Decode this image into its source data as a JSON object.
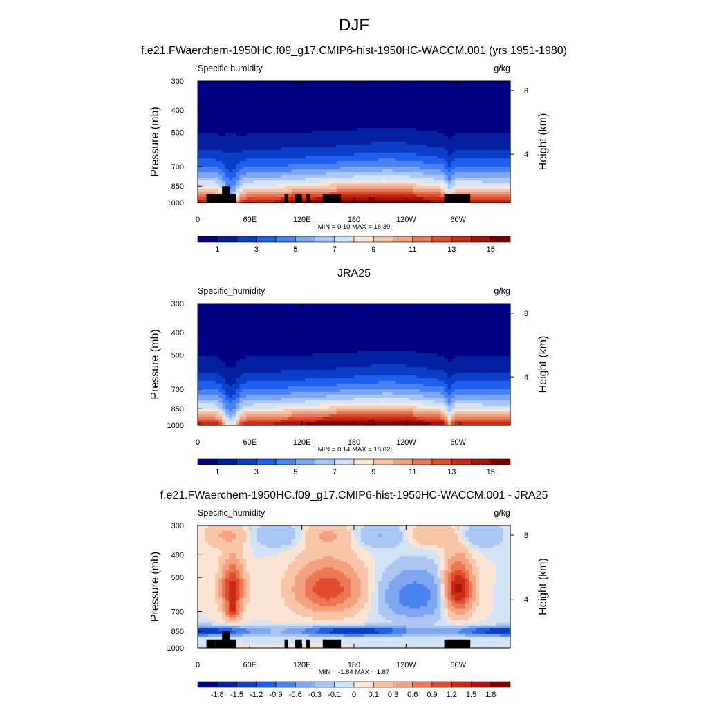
{
  "main_title": "DJF",
  "chart_data": [
    {
      "type": "heatmap",
      "title": "f.e21.FWaerchem-1950HC.f09_g17.CMIP6-hist-1950HC-WACCM.001 (yrs 1951-1980)",
      "left_label": "Specific humidity",
      "units_label": "g/kg",
      "ylabel": "Pressure (mb)",
      "ylabel_right": "Height (km)",
      "xlabel": "",
      "x_ticks": [
        "0",
        "60E",
        "120E",
        "180",
        "120W",
        "60W"
      ],
      "y_ticks": [
        "300",
        "400",
        "500",
        "700",
        "850",
        "1000"
      ],
      "y_ticks_right": [
        "8",
        "4"
      ],
      "xlim": [
        0,
        360
      ],
      "ylim": [
        1000,
        300
      ],
      "min_max_text": "MIN =   0.10  MAX =   18.39",
      "levels": [
        0,
        1,
        2,
        3,
        4,
        5,
        6,
        7,
        8,
        9,
        10,
        11,
        12,
        13,
        14,
        15,
        16
      ],
      "colorbar_labels": [
        "1",
        "3",
        "5",
        "7",
        "9",
        "11",
        "13",
        "15"
      ],
      "topography_mask": true
    },
    {
      "type": "heatmap",
      "title": "JRA25",
      "left_label": "Specific_humidity",
      "units_label": "g/kg",
      "ylabel": "Pressure (mb)",
      "ylabel_right": "Height (km)",
      "xlabel": "",
      "x_ticks": [
        "0",
        "60E",
        "120E",
        "180",
        "120W",
        "60W"
      ],
      "y_ticks": [
        "300",
        "400",
        "500",
        "700",
        "850",
        "1000"
      ],
      "y_ticks_right": [
        "8",
        "4"
      ],
      "xlim": [
        0,
        360
      ],
      "ylim": [
        1000,
        300
      ],
      "min_max_text": "MIN =   0.14  MAX =   18.02",
      "levels": [
        0,
        1,
        2,
        3,
        4,
        5,
        6,
        7,
        8,
        9,
        10,
        11,
        12,
        13,
        14,
        15,
        16
      ],
      "colorbar_labels": [
        "1",
        "3",
        "5",
        "7",
        "9",
        "11",
        "13",
        "15"
      ],
      "topography_mask": false
    },
    {
      "type": "heatmap",
      "title": "f.e21.FWaerchem-1950HC.f09_g17.CMIP6-hist-1950HC-WACCM.001 - JRA25",
      "left_label": "Specific_humidity",
      "units_label": "g/kg",
      "ylabel": "Pressure (mb)",
      "ylabel_right": "Height (km)",
      "xlabel": "",
      "x_ticks": [
        "0",
        "60E",
        "120E",
        "180",
        "120W",
        "60W"
      ],
      "y_ticks": [
        "300",
        "400",
        "500",
        "700",
        "850",
        "1000"
      ],
      "y_ticks_right": [
        "8",
        "4"
      ],
      "xlim": [
        0,
        360
      ],
      "ylim": [
        1000,
        300
      ],
      "min_max_text": "MIN =  -1.84  MAX =   1.87",
      "levels": [
        -2.1,
        -1.8,
        -1.5,
        -1.2,
        -0.9,
        -0.6,
        -0.3,
        -0.1,
        0,
        0.1,
        0.3,
        0.6,
        0.9,
        1.2,
        1.5,
        1.8,
        2.1
      ],
      "colorbar_labels": [
        "-1.8",
        "-1.5",
        "-1.2",
        "-0.9",
        "-0.6",
        "-0.3",
        "-0.1",
        "0",
        "0.1",
        "0.3",
        "0.6",
        "0.9",
        "1.2",
        "1.5",
        "1.8"
      ],
      "topography_mask": true
    }
  ],
  "colormap": [
    "#000080",
    "#0320a0",
    "#0a3fc8",
    "#1f5ff0",
    "#4a82f0",
    "#7fa6f0",
    "#abc6f2",
    "#d3e3f6",
    "#fbe4d4",
    "#f8c5a8",
    "#f3a17f",
    "#ec7656",
    "#e14b2e",
    "#c92a14",
    "#a5150a",
    "#7f0000"
  ]
}
